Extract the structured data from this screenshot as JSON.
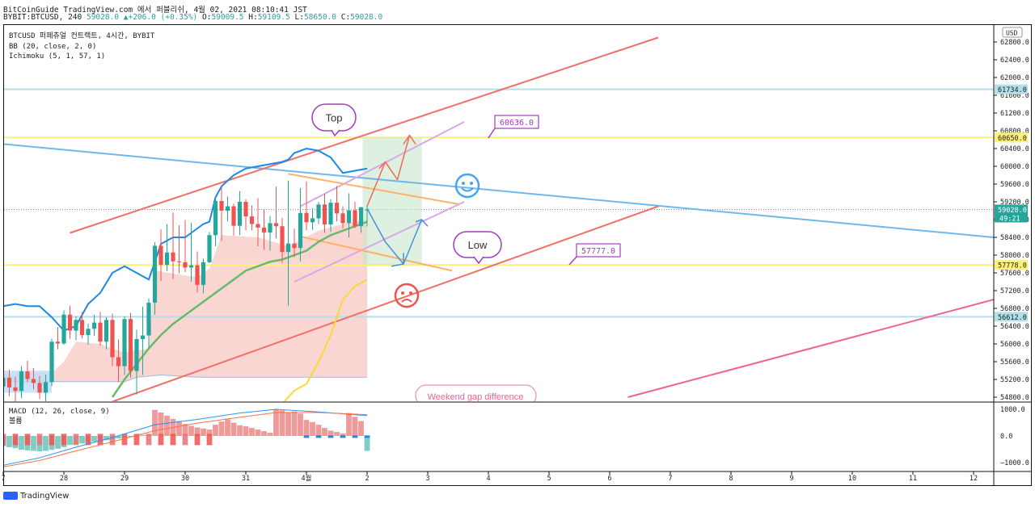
{
  "header": {
    "line1": "BitCoinGuide TradingView.com 에서 퍼블리쉬, 4월 02, 2021 08:10:41 JST",
    "symbol": "BYBIT:BTCUSD, 240",
    "last": "59028.0",
    "change_arrow": "▲",
    "change": "+206.0 (+0.35%)",
    "o_label": "O:",
    "o": "59009.5",
    "h_label": "H:",
    "h": "59109.5",
    "l_label": "L:",
    "l": "58650.0",
    "c_label": "C:",
    "c": "59028.0"
  },
  "legend": {
    "title": "BTCUSD 퍼페츄얼 컨트랙트, 4시간, BYBIT",
    "bb": "BB (20, close, 2, 0)",
    "ichimoku": "Ichimoku (5, 1, 57, 1)"
  },
  "macd_legend": {
    "title": "MACD (12, 26, close, 9)",
    "subtitle": "볼륨"
  },
  "currency": "USD",
  "footer": {
    "brand": "TradingView"
  },
  "annotations": {
    "top": "Top",
    "low": "Low",
    "target_high": "60636.0",
    "target_low": "57777.0",
    "weekend": "Weekend gap difference"
  },
  "price_badges": [
    {
      "text": "61734.0",
      "value": 61734,
      "bg": "#b2dfe8",
      "fg": "#1e1e1e"
    },
    {
      "text": "60650.0",
      "value": 60650,
      "bg": "#fff176",
      "fg": "#1e1e1e"
    },
    {
      "text": "59028.0",
      "value": 59028,
      "bg": "#26a69a",
      "fg": "#ffffff",
      "sub": "49:21"
    },
    {
      "text": "57778.0",
      "value": 57778,
      "bg": "#fff176",
      "fg": "#1e1e1e"
    },
    {
      "text": "56612.0",
      "value": 56612,
      "bg": "#b2dfe8",
      "fg": "#1e1e1e"
    }
  ],
  "colors": {
    "up": "#26a69a",
    "down": "#ef5350",
    "channel": "#f07068",
    "trend_blue": "#6fb8ea",
    "yellow_line": "#fff176",
    "cyan_line": "#b2dfe8",
    "cloud": "#f8c8c4",
    "green_line": "#66bb6a",
    "blue_line": "#1e88e5",
    "gold_line": "#fdd835",
    "lilac": "#d8a8e8",
    "orange": "#ffb06b",
    "purple": "#a33cc0",
    "target_box": "#c8e6c9",
    "smile": "#42a5f5",
    "sad": "#ef5350",
    "pink": "#f06292"
  },
  "chart_data": {
    "type": "candlestick",
    "y_axis": {
      "min": 54800,
      "max": 62800,
      "step": 400,
      "labels": [
        "62800.0",
        "62400.0",
        "62000.0",
        "61600.0",
        "61200.0",
        "60800.0",
        "60400.0",
        "60000.0",
        "59600.0",
        "59200.0",
        "58800.0",
        "58400.0",
        "58000.0",
        "57600.0",
        "57200.0",
        "56800.0",
        "56400.0",
        "56000.0",
        "55600.0",
        "55200.0",
        "54800.0"
      ]
    },
    "x_axis": {
      "labels": [
        {
          "text": "7",
          "idx": -12
        },
        {
          "text": "28",
          "idx": -2
        },
        {
          "text": "29",
          "idx": 8
        },
        {
          "text": "30",
          "idx": 18
        },
        {
          "text": "31",
          "idx": 28
        },
        {
          "text": "4월",
          "idx": 38
        },
        {
          "text": "2",
          "idx": 48
        },
        {
          "text": "3",
          "idx": 58
        },
        {
          "text": "4",
          "idx": 68
        },
        {
          "text": "5",
          "idx": 78
        },
        {
          "text": "6",
          "idx": 88
        },
        {
          "text": "7",
          "idx": 98
        },
        {
          "text": "8",
          "idx": 108
        },
        {
          "text": "9",
          "idx": 118
        },
        {
          "text": "10",
          "idx": 128
        },
        {
          "text": "11",
          "idx": 138
        },
        {
          "text": "12",
          "idx": 148
        }
      ]
    },
    "macd_axis": {
      "labels": [
        "1000.0",
        "0.0",
        "−1000.0"
      ],
      "min": -1000,
      "max": 1000
    },
    "candles": [
      [
        -12,
        55040,
        55560,
        54740,
        55240
      ],
      [
        -11,
        55240,
        55420,
        54820,
        55020
      ],
      [
        -10,
        55020,
        55260,
        54700,
        54940
      ],
      [
        -9,
        54940,
        55500,
        54780,
        55380
      ],
      [
        -8,
        55380,
        55620,
        55140,
        55210
      ],
      [
        -7,
        55210,
        55460,
        54980,
        55120
      ],
      [
        -6,
        55120,
        55280,
        54760,
        54900
      ],
      [
        -5,
        54900,
        55310,
        54700,
        55140
      ],
      [
        -4,
        55140,
        56120,
        55050,
        56050
      ],
      [
        -3,
        56050,
        56380,
        55880,
        56010
      ],
      [
        -2,
        56010,
        56760,
        55980,
        56660
      ],
      [
        -1,
        56660,
        56860,
        56120,
        56300
      ],
      [
        0,
        56300,
        56620,
        56080,
        56540
      ],
      [
        1,
        56540,
        56720,
        56130,
        56200
      ],
      [
        2,
        56200,
        56460,
        55980,
        56340
      ],
      [
        3,
        56340,
        56660,
        56180,
        56480
      ],
      [
        4,
        56480,
        56720,
        55960,
        56050
      ],
      [
        5,
        56050,
        56600,
        55880,
        56540
      ],
      [
        6,
        56540,
        56680,
        55500,
        55700
      ],
      [
        7,
        55700,
        56100,
        55140,
        55500
      ],
      [
        8,
        55500,
        56620,
        55300,
        56560
      ],
      [
        9,
        56560,
        56700,
        55240,
        55390
      ],
      [
        10,
        55390,
        56320,
        54860,
        56110
      ],
      [
        11,
        56110,
        56840,
        55300,
        56190
      ],
      [
        12,
        56190,
        57020,
        55900,
        56930
      ],
      [
        13,
        56930,
        58290,
        56660,
        58210
      ],
      [
        14,
        58210,
        58580,
        57420,
        57780
      ],
      [
        15,
        57780,
        58700,
        57640,
        58060
      ],
      [
        16,
        58060,
        58960,
        57460,
        57860
      ],
      [
        17,
        57860,
        58670,
        57590,
        57840
      ],
      [
        18,
        57840,
        58790,
        57620,
        57720
      ],
      [
        19,
        57720,
        58730,
        57400,
        57770
      ],
      [
        20,
        57770,
        58080,
        57160,
        57330
      ],
      [
        21,
        57330,
        57920,
        57140,
        57840
      ],
      [
        22,
        57840,
        58520,
        57820,
        58450
      ],
      [
        23,
        58450,
        59320,
        58200,
        59220
      ],
      [
        24,
        59220,
        59540,
        58320,
        59000
      ],
      [
        25,
        59000,
        59320,
        58760,
        59100
      ],
      [
        26,
        59100,
        59160,
        58440,
        58660
      ],
      [
        27,
        58660,
        59440,
        58450,
        59200
      ],
      [
        28,
        59200,
        59260,
        58560,
        58870
      ],
      [
        29,
        58870,
        59120,
        58560,
        58700
      ],
      [
        30,
        58700,
        59280,
        58200,
        58620
      ],
      [
        31,
        58620,
        59020,
        58120,
        58510
      ],
      [
        32,
        58510,
        58880,
        58100,
        58720
      ],
      [
        33,
        58720,
        59540,
        58380,
        58650
      ],
      [
        34,
        58650,
        58840,
        57820,
        58070
      ],
      [
        35,
        58070,
        59680,
        56860,
        58260
      ],
      [
        36,
        58260,
        58600,
        57950,
        58160
      ],
      [
        37,
        58160,
        59510,
        57860,
        58950
      ],
      [
        38,
        58950,
        59660,
        58560,
        58740
      ],
      [
        39,
        58740,
        59060,
        58570,
        58830
      ],
      [
        40,
        58830,
        59200,
        58700,
        59140
      ],
      [
        41,
        59140,
        59380,
        58500,
        58690
      ],
      [
        42,
        58690,
        59260,
        58520,
        59180
      ],
      [
        43,
        59180,
        59560,
        58760,
        58940
      ],
      [
        44,
        58940,
        59100,
        58600,
        58720
      ],
      [
        45,
        58720,
        59390,
        58400,
        59010
      ],
      [
        46,
        59010,
        59200,
        58610,
        58650
      ],
      [
        47,
        58650,
        59080,
        58500,
        59080
      ],
      [
        48,
        59009.5,
        59109.5,
        58650,
        59028
      ]
    ],
    "macd_bars": [
      [
        -12,
        -380
      ],
      [
        -11,
        -420
      ],
      [
        -10,
        -460
      ],
      [
        -9,
        -520
      ],
      [
        -8,
        -540
      ],
      [
        -7,
        -560
      ],
      [
        -6,
        -580
      ],
      [
        -5,
        -560
      ],
      [
        -4,
        -520
      ],
      [
        -3,
        -480
      ],
      [
        -2,
        -420
      ],
      [
        -1,
        -340
      ],
      [
        0,
        -300
      ],
      [
        1,
        -280
      ],
      [
        2,
        -260
      ],
      [
        3,
        -220
      ],
      [
        4,
        -200
      ],
      [
        5,
        -160
      ],
      [
        6,
        -120
      ],
      [
        7,
        -90
      ],
      [
        8,
        -60
      ],
      [
        9,
        -40
      ],
      [
        10,
        -20
      ],
      [
        11,
        40
      ],
      [
        12,
        80
      ],
      [
        13,
        980
      ],
      [
        14,
        880
      ],
      [
        15,
        760
      ],
      [
        16,
        640
      ],
      [
        17,
        560
      ],
      [
        18,
        450
      ],
      [
        19,
        380
      ],
      [
        20,
        320
      ],
      [
        21,
        280
      ],
      [
        22,
        240
      ],
      [
        23,
        420
      ],
      [
        24,
        540
      ],
      [
        25,
        620
      ],
      [
        26,
        500
      ],
      [
        27,
        400
      ],
      [
        28,
        360
      ],
      [
        29,
        300
      ],
      [
        30,
        240
      ],
      [
        31,
        180
      ],
      [
        32,
        120
      ],
      [
        33,
        1000
      ],
      [
        34,
        960
      ],
      [
        35,
        880
      ],
      [
        36,
        920
      ],
      [
        37,
        840
      ],
      [
        38,
        600
      ],
      [
        39,
        520
      ],
      [
        40,
        420
      ],
      [
        41,
        300
      ],
      [
        42,
        200
      ],
      [
        43,
        150
      ],
      [
        44,
        100
      ],
      [
        45,
        860
      ],
      [
        46,
        720
      ],
      [
        47,
        560
      ],
      [
        48,
        -560
      ]
    ],
    "macd_line": [
      [
        -12,
        -1100
      ],
      [
        -6,
        -820
      ],
      [
        0,
        -420
      ],
      [
        6,
        -60
      ],
      [
        13,
        420
      ],
      [
        20,
        620
      ],
      [
        27,
        860
      ],
      [
        33,
        1000
      ],
      [
        40,
        900
      ],
      [
        48,
        760
      ]
    ],
    "signal_line": [
      [
        -12,
        -1160
      ],
      [
        -6,
        -920
      ],
      [
        0,
        -560
      ],
      [
        6,
        -220
      ],
      [
        13,
        200
      ],
      [
        20,
        480
      ],
      [
        27,
        700
      ],
      [
        33,
        880
      ],
      [
        40,
        880
      ],
      [
        48,
        800
      ]
    ]
  }
}
